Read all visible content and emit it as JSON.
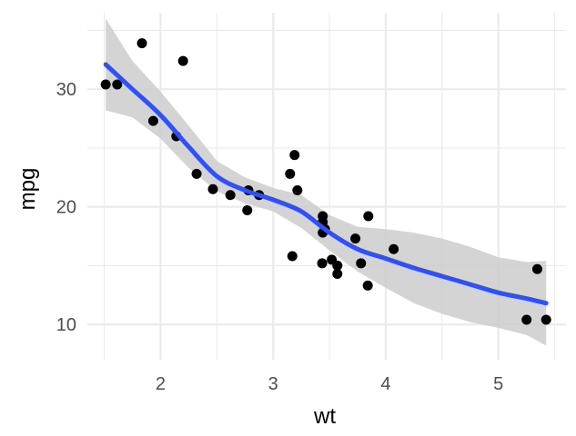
{
  "chart_data": {
    "type": "scatter",
    "title": "",
    "xlabel": "wt",
    "ylabel": "mpg",
    "xlim": [
      1.35,
      5.6
    ],
    "ylim": [
      7.0,
      36.5
    ],
    "x_ticks": [
      2,
      3,
      4,
      5
    ],
    "y_ticks": [
      10,
      20,
      30
    ],
    "x_minor_ticks": [
      1.5,
      2.5,
      3.5,
      4.5,
      5.5
    ],
    "y_minor_ticks": [
      15,
      25,
      35
    ],
    "grid": true,
    "legend": "none",
    "colors": {
      "points": "#000000",
      "smooth_line": "#3050f8",
      "confidence_band": "#cccccc",
      "grid": "#ebebeb",
      "background": "#ffffff"
    },
    "points": [
      {
        "x": 2.62,
        "y": 21.0
      },
      {
        "x": 2.875,
        "y": 21.0
      },
      {
        "x": 2.32,
        "y": 22.8
      },
      {
        "x": 3.215,
        "y": 21.4
      },
      {
        "x": 3.44,
        "y": 18.7
      },
      {
        "x": 3.46,
        "y": 18.1
      },
      {
        "x": 3.57,
        "y": 14.3
      },
      {
        "x": 3.19,
        "y": 24.4
      },
      {
        "x": 3.15,
        "y": 22.8
      },
      {
        "x": 3.44,
        "y": 19.2
      },
      {
        "x": 3.44,
        "y": 17.8
      },
      {
        "x": 4.07,
        "y": 16.4
      },
      {
        "x": 3.73,
        "y": 17.3
      },
      {
        "x": 3.78,
        "y": 15.2
      },
      {
        "x": 5.25,
        "y": 10.4
      },
      {
        "x": 5.424,
        "y": 10.4
      },
      {
        "x": 5.345,
        "y": 14.7
      },
      {
        "x": 2.2,
        "y": 32.4
      },
      {
        "x": 1.615,
        "y": 30.4
      },
      {
        "x": 1.835,
        "y": 33.9
      },
      {
        "x": 2.465,
        "y": 21.5
      },
      {
        "x": 3.52,
        "y": 15.5
      },
      {
        "x": 3.435,
        "y": 15.2
      },
      {
        "x": 3.84,
        "y": 13.3
      },
      {
        "x": 3.845,
        "y": 19.2
      },
      {
        "x": 1.935,
        "y": 27.3
      },
      {
        "x": 2.14,
        "y": 26.0
      },
      {
        "x": 1.513,
        "y": 30.4
      },
      {
        "x": 3.17,
        "y": 15.8
      },
      {
        "x": 2.77,
        "y": 19.7
      },
      {
        "x": 3.57,
        "y": 15.0
      },
      {
        "x": 2.78,
        "y": 21.4
      }
    ],
    "smooth": {
      "method": "loess",
      "x": [
        1.513,
        1.75,
        2.0,
        2.25,
        2.5,
        2.75,
        3.0,
        3.25,
        3.5,
        3.75,
        4.0,
        4.25,
        4.5,
        4.75,
        5.0,
        5.25,
        5.424
      ],
      "y": [
        32.1,
        30.0,
        27.8,
        25.1,
        22.6,
        21.4,
        20.6,
        19.6,
        17.8,
        16.4,
        15.6,
        14.8,
        14.1,
        13.4,
        12.7,
        12.2,
        11.8
      ],
      "lower": [
        28.2,
        27.6,
        25.8,
        23.3,
        21.3,
        20.3,
        19.6,
        18.2,
        16.3,
        14.5,
        13.1,
        11.8,
        10.9,
        10.2,
        9.7,
        9.1,
        8.2
      ],
      "upper": [
        36.0,
        32.4,
        29.8,
        26.9,
        23.9,
        22.5,
        21.6,
        21.0,
        19.3,
        18.3,
        18.1,
        17.8,
        17.3,
        16.6,
        15.7,
        15.3,
        15.4
      ]
    }
  }
}
